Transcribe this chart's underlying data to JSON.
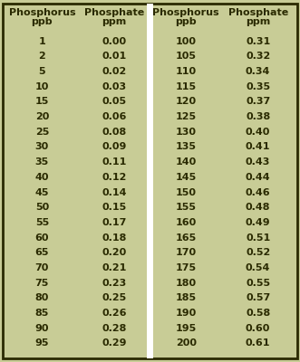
{
  "bg_color": "#c8cc96",
  "border_color": "#2a2a00",
  "text_color": "#2a2a00",
  "header_color": "#2a2a00",
  "divider_color": "#ffffff",
  "col1_phosphorus": [
    1,
    2,
    5,
    10,
    15,
    20,
    25,
    30,
    35,
    40,
    45,
    50,
    55,
    60,
    65,
    70,
    75,
    80,
    85,
    90,
    95
  ],
  "col1_phosphate": [
    "0.00",
    "0.01",
    "0.02",
    "0.03",
    "0.05",
    "0.06",
    "0.08",
    "0.09",
    "0.11",
    "0.12",
    "0.14",
    "0.15",
    "0.17",
    "0.18",
    "0.20",
    "0.21",
    "0.23",
    "0.25",
    "0.26",
    "0.28",
    "0.29"
  ],
  "col2_phosphorus": [
    100,
    105,
    110,
    115,
    120,
    125,
    130,
    135,
    140,
    145,
    150,
    155,
    160,
    165,
    170,
    175,
    180,
    185,
    190,
    195,
    200
  ],
  "col2_phosphate": [
    "0.31",
    "0.32",
    "0.34",
    "0.35",
    "0.37",
    "0.38",
    "0.40",
    "0.41",
    "0.43",
    "0.44",
    "0.46",
    "0.48",
    "0.49",
    "0.51",
    "0.52",
    "0.54",
    "0.55",
    "0.57",
    "0.58",
    "0.60",
    "0.61"
  ],
  "header_line1": [
    "Phosphorus",
    "Phosphate",
    "Phosphorus",
    "Phosphate"
  ],
  "header_line2": [
    "ppb",
    "ppm",
    "ppb",
    "ppm"
  ],
  "figsize": [
    3.31,
    4.0
  ],
  "dpi": 100
}
